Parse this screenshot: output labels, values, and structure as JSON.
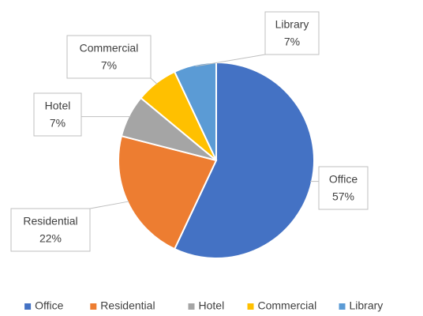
{
  "chart_data": {
    "type": "pie",
    "categories": [
      "Office",
      "Residential",
      "Hotel",
      "Commercial",
      "Library"
    ],
    "values": [
      57,
      22,
      7,
      7,
      7
    ],
    "value_labels": [
      "57%",
      "22%",
      "7%",
      "7%",
      "7%"
    ],
    "colors": [
      "#4472c4",
      "#ed7d31",
      "#a5a5a5",
      "#ffc000",
      "#5b9bd5"
    ],
    "legend": "bottom"
  }
}
